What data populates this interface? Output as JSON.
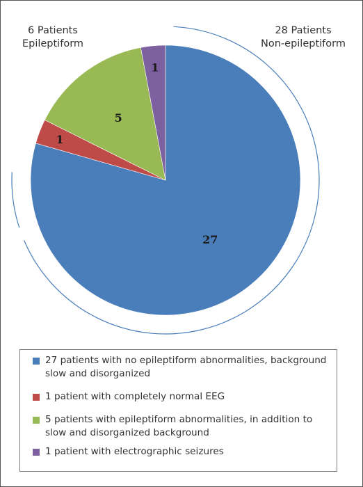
{
  "chart_data": {
    "type": "pie",
    "slices": [
      {
        "label": "27",
        "value": 27,
        "color": "#4a7ebb",
        "legend": "27 patients with no epileptiform abnormalities, background slow and disorganized"
      },
      {
        "label": "1",
        "value": 1,
        "color": "#be4b48",
        "legend": "1 patient with completely normal EEG"
      },
      {
        "label": "5",
        "value": 5,
        "color": "#98b954",
        "legend": "5 patients with epileptiform abnormalities, in addition to slow and disorganized background"
      },
      {
        "label": "1",
        "value": 1,
        "color": "#7d60a0",
        "legend": "1 patient with electrographic seizures"
      }
    ],
    "groups": [
      {
        "line1": "6 Patients",
        "line2": "Epileptiform"
      },
      {
        "line1": "28 Patients",
        "line2": "Non-epileptiform"
      }
    ],
    "legend_position": "bottom",
    "bracket_color": "#4a7ebb"
  }
}
